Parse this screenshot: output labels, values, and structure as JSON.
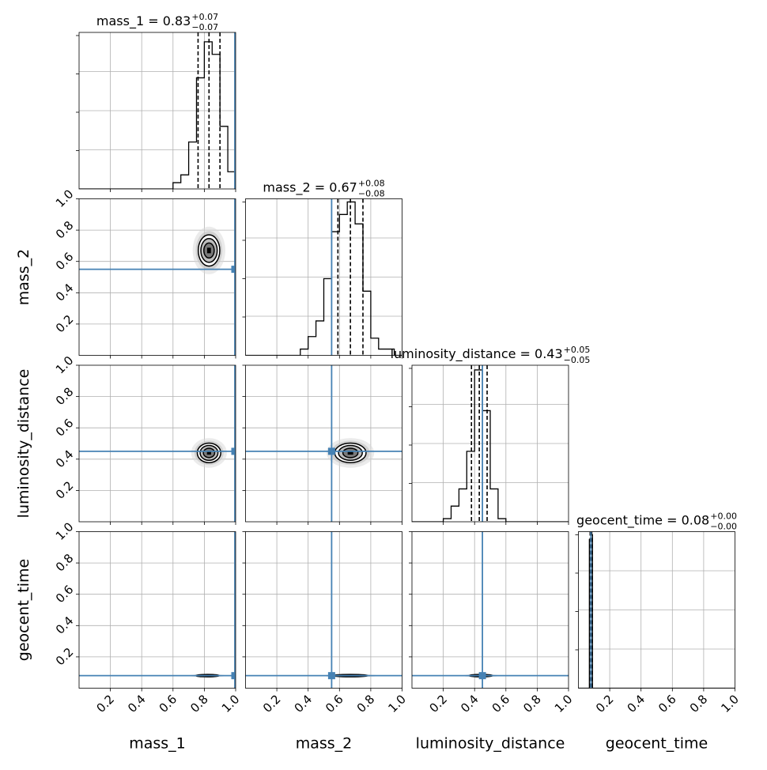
{
  "chart_data": {
    "type": "corner",
    "parameters": [
      "mass_1",
      "mass_2",
      "luminosity_distance",
      "geocent_time"
    ],
    "axis_labels": [
      "mass_1",
      "mass_2",
      "luminosity_distance",
      "geocent_time"
    ],
    "tick_labels": [
      "0.2",
      "0.4",
      "0.6",
      "0.8",
      "1.0"
    ],
    "ticks": [
      0.2,
      0.4,
      0.6,
      0.8,
      1.0
    ],
    "range": [
      0,
      1
    ],
    "truth_color": "#4682b4",
    "truths": [
      0.995,
      0.55,
      0.45,
      0.08
    ],
    "summaries": [
      {
        "name": "mass_1",
        "value": "0.83",
        "plus": "+0.07",
        "minus": "−0.07",
        "eq": " = ",
        "quantiles": [
          0.76,
          0.83,
          0.9
        ]
      },
      {
        "name": "mass_2",
        "value": "0.67",
        "plus": "+0.08",
        "minus": "−0.08",
        "eq": " = ",
        "quantiles": [
          0.59,
          0.67,
          0.75
        ]
      },
      {
        "name": "luminosity_distance",
        "value": "0.43",
        "plus": "+0.05",
        "minus": "−0.05",
        "eq": " = ",
        "quantiles": [
          0.38,
          0.43,
          0.48
        ]
      },
      {
        "name": "geocent_time",
        "value": "0.08",
        "plus": "+0.00",
        "minus": "−0.00",
        "eq": " = ",
        "quantiles": [
          0.075,
          0.08,
          0.085
        ]
      }
    ],
    "histograms": [
      {
        "parameter": "mass_1",
        "bin_width": 0.05,
        "bin_starts": [
          0.55,
          0.6,
          0.65,
          0.7,
          0.75,
          0.8,
          0.85,
          0.9,
          0.95,
          1.0
        ],
        "counts": [
          0.0,
          0.04,
          0.09,
          0.3,
          0.71,
          0.94,
          0.86,
          0.4,
          0.11,
          0.0
        ]
      },
      {
        "parameter": "mass_2",
        "bin_width": 0.05,
        "bin_starts": [
          0.3,
          0.35,
          0.4,
          0.45,
          0.5,
          0.55,
          0.6,
          0.65,
          0.7,
          0.75,
          0.8,
          0.85,
          0.9,
          0.95
        ],
        "counts": [
          0.0,
          0.04,
          0.12,
          0.22,
          0.49,
          0.79,
          0.9,
          0.98,
          0.84,
          0.41,
          0.11,
          0.04,
          0.04,
          0.0
        ]
      },
      {
        "parameter": "luminosity_distance",
        "bin_width": 0.05,
        "bin_starts": [
          0.2,
          0.25,
          0.3,
          0.35,
          0.4,
          0.45,
          0.5,
          0.55,
          0.6
        ],
        "counts": [
          0.02,
          0.1,
          0.21,
          0.45,
          0.97,
          0.71,
          0.21,
          0.02,
          0.0
        ]
      },
      {
        "parameter": "geocent_time",
        "bin_width": 0.01,
        "bin_starts": [
          0.05,
          0.06,
          0.07,
          0.08,
          0.09
        ],
        "counts": [
          0.0,
          0.0,
          0.95,
          0.98,
          0.0
        ]
      }
    ],
    "contours_2d": [
      {
        "x": "mass_1",
        "y": "mass_2",
        "center": [
          0.83,
          0.67
        ],
        "sigma": [
          0.055,
          0.08
        ]
      },
      {
        "x": "mass_1",
        "y": "luminosity_distance",
        "center": [
          0.83,
          0.44
        ],
        "sigma": [
          0.06,
          0.05
        ]
      },
      {
        "x": "mass_2",
        "y": "luminosity_distance",
        "center": [
          0.67,
          0.44
        ],
        "sigma": [
          0.08,
          0.05
        ]
      },
      {
        "x": "mass_1",
        "y": "geocent_time",
        "center": [
          0.82,
          0.08
        ],
        "sigma": [
          0.06,
          0.006
        ]
      },
      {
        "x": "mass_2",
        "y": "geocent_time",
        "center": [
          0.67,
          0.08
        ],
        "sigma": [
          0.09,
          0.006
        ]
      },
      {
        "x": "luminosity_distance",
        "y": "geocent_time",
        "center": [
          0.44,
          0.08
        ],
        "sigma": [
          0.06,
          0.006
        ]
      }
    ],
    "grid": true
  }
}
